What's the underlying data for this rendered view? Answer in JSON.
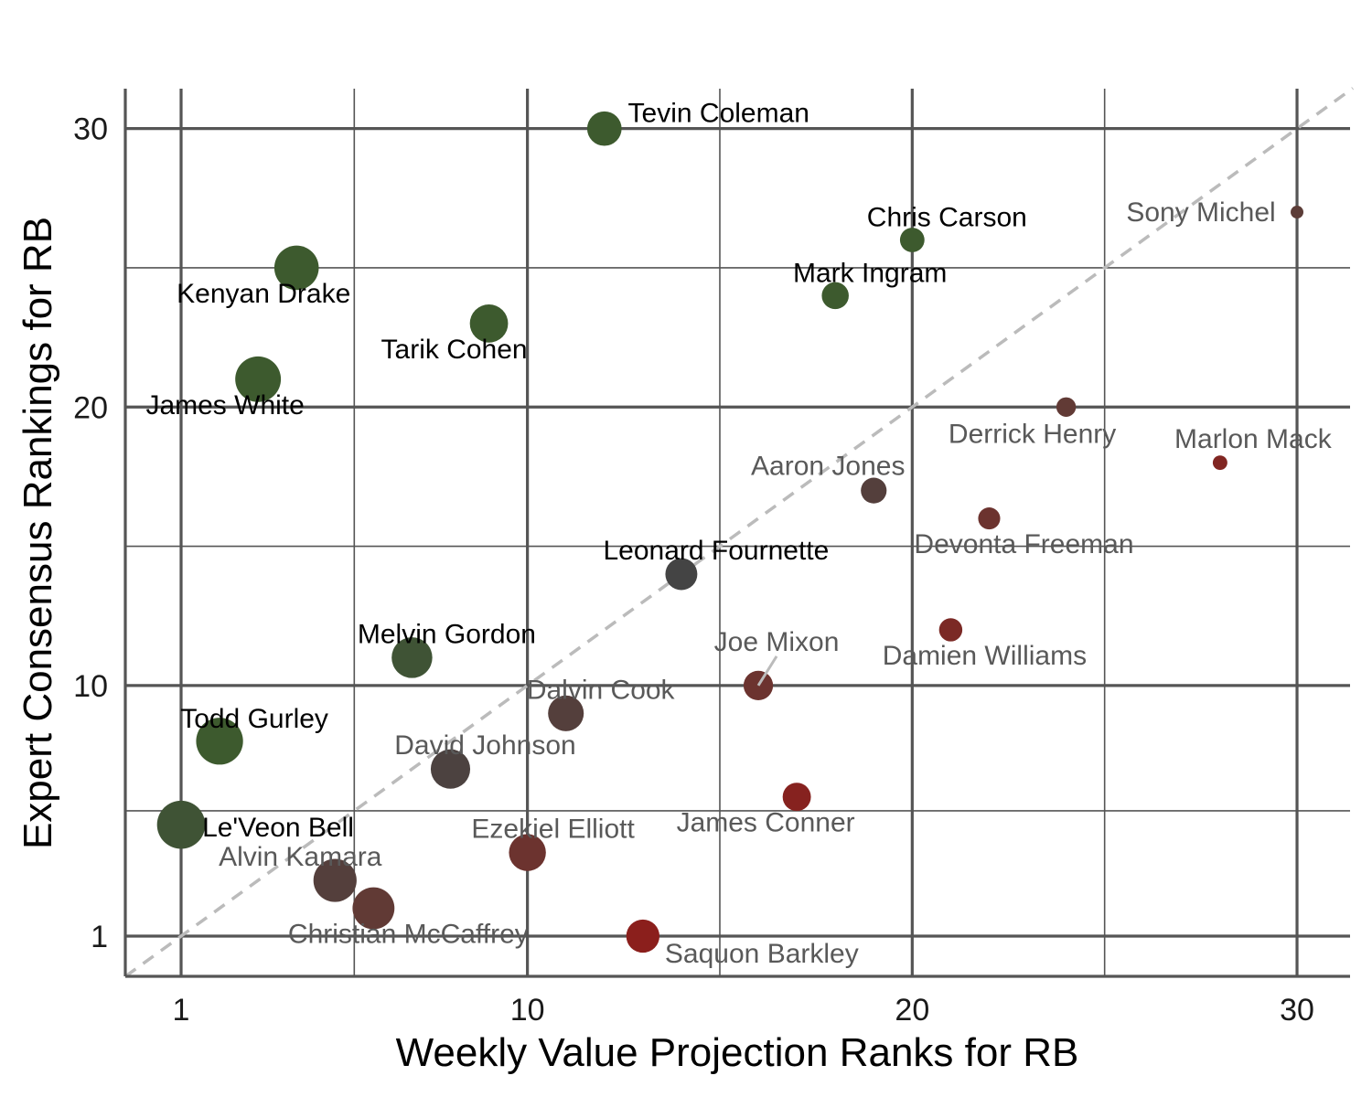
{
  "chart_data": {
    "type": "scatter",
    "xlabel": "Weekly Value Projection Ranks for RB",
    "ylabel": "Expert Consensus Rankings for RB",
    "x_ticks": [
      1,
      10,
      20,
      30
    ],
    "y_ticks": [
      1,
      10,
      20,
      30
    ],
    "xlim": [
      -0.45,
      31.45
    ],
    "ylim": [
      -0.45,
      31.45
    ],
    "grid": true,
    "reference_line": "y = x (dashed)",
    "colors": {
      "green": "#3d5a2e",
      "dark_gray": "#444444",
      "brown": "#5c3d38",
      "red": "#8b1f1c",
      "dashed_line": "#bbbbbb",
      "grid": "#555555"
    },
    "points": [
      {
        "label": "Le'Veon Bell",
        "x": 1,
        "y": 5,
        "label_shade": "black"
      },
      {
        "label": "Todd Gurley",
        "x": 2,
        "y": 8,
        "label_shade": "black"
      },
      {
        "label": "James White",
        "x": 3,
        "y": 21,
        "label_shade": "black"
      },
      {
        "label": "Kenyan Drake",
        "x": 4,
        "y": 25,
        "label_shade": "black"
      },
      {
        "label": "Alvin Kamara",
        "x": 5,
        "y": 3,
        "label_shade": "gray"
      },
      {
        "label": "Christian McCaffrey",
        "x": 6,
        "y": 2,
        "label_shade": "gray"
      },
      {
        "label": "Melvin Gordon",
        "x": 7,
        "y": 11,
        "label_shade": "black"
      },
      {
        "label": "David Johnson",
        "x": 8,
        "y": 7,
        "label_shade": "gray"
      },
      {
        "label": "Tarik Cohen",
        "x": 9,
        "y": 23,
        "label_shade": "black"
      },
      {
        "label": "Ezekiel Elliott",
        "x": 10,
        "y": 4,
        "label_shade": "gray"
      },
      {
        "label": "Dalvin Cook",
        "x": 11,
        "y": 9,
        "label_shade": "gray"
      },
      {
        "label": "Tevin Coleman",
        "x": 12,
        "y": 30,
        "label_shade": "black"
      },
      {
        "label": "Saquon Barkley",
        "x": 13,
        "y": 1,
        "label_shade": "gray"
      },
      {
        "label": "Leonard Fournette",
        "x": 14,
        "y": 14,
        "label_shade": "black"
      },
      {
        "label": "Joe Mixon",
        "x": 16,
        "y": 10,
        "label_shade": "gray"
      },
      {
        "label": "James Conner",
        "x": 17,
        "y": 6,
        "label_shade": "gray"
      },
      {
        "label": "Mark Ingram",
        "x": 18,
        "y": 24,
        "label_shade": "black"
      },
      {
        "label": "Aaron Jones",
        "x": 19,
        "y": 17,
        "label_shade": "gray"
      },
      {
        "label": "Chris Carson",
        "x": 20,
        "y": 26,
        "label_shade": "black"
      },
      {
        "label": "Damien Williams",
        "x": 21,
        "y": 12,
        "label_shade": "gray"
      },
      {
        "label": "Devonta Freeman",
        "x": 22,
        "y": 16,
        "label_shade": "gray"
      },
      {
        "label": "Derrick Henry",
        "x": 24,
        "y": 20,
        "label_shade": "gray"
      },
      {
        "label": "Marlon Mack",
        "x": 28,
        "y": 18,
        "label_shade": "gray"
      },
      {
        "label": "Sony Michel",
        "x": 30,
        "y": 27,
        "label_shade": "gray"
      }
    ]
  }
}
